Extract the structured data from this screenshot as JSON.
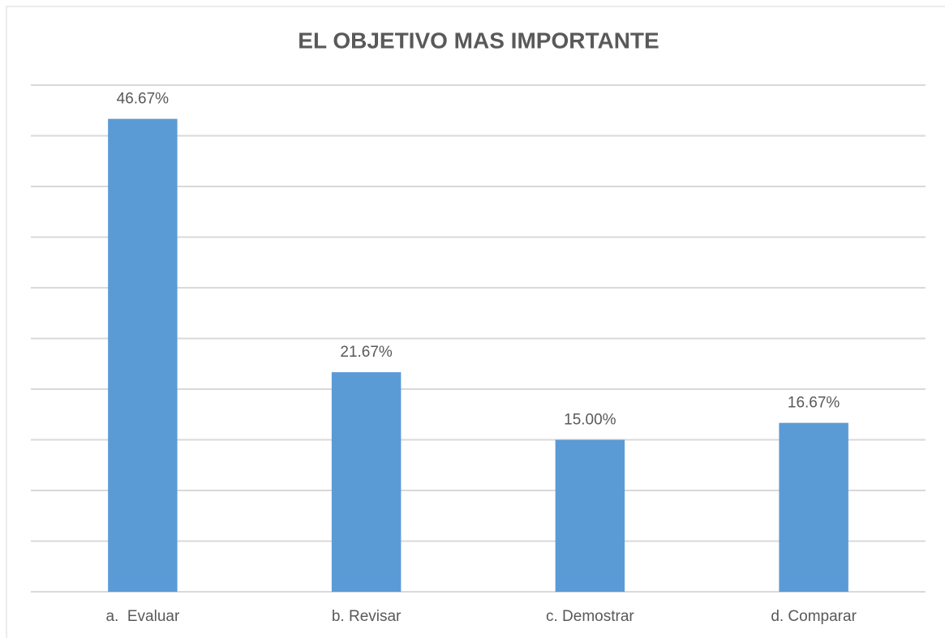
{
  "chart_data": {
    "type": "bar",
    "title": "EL OBJETIVO MAS IMPORTANTE",
    "categories": [
      "a.  Evaluar",
      "b. Revisar",
      "c. Demostrar",
      "d. Comparar"
    ],
    "values": [
      46.67,
      21.67,
      15.0,
      16.67
    ],
    "value_labels": [
      "46.67%",
      "21.67%",
      "15.00%",
      "16.67%"
    ],
    "color": "#5b9bd5",
    "ylim": [
      0,
      50
    ],
    "yticks": [
      0,
      5,
      10,
      15,
      20,
      25,
      30,
      35,
      40,
      45,
      50
    ],
    "grid": true
  }
}
